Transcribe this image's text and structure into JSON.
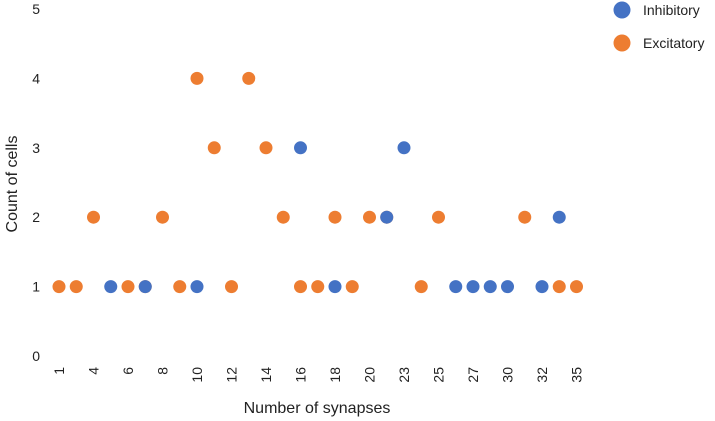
{
  "chart_data": {
    "type": "scatter",
    "title": "",
    "xlabel": "Number of synapses",
    "ylabel": "Count of cells",
    "categories": [
      "1",
      "",
      "4",
      "",
      "6",
      "",
      "8",
      "",
      "10",
      "",
      "12",
      "",
      "14",
      "",
      "16",
      "",
      "18",
      "",
      "20",
      "",
      "23",
      "",
      "25",
      "",
      "27",
      "",
      "30",
      "",
      "32",
      "",
      "35"
    ],
    "ylim": [
      0,
      5
    ],
    "yticks": [
      0,
      1,
      2,
      3,
      4,
      5
    ],
    "grid": false,
    "legend_position": "top-right",
    "series": [
      {
        "name": "Inhibitory",
        "color": "#4472c4",
        "points": [
          [
            3,
            1
          ],
          [
            5,
            1
          ],
          [
            8,
            1
          ],
          [
            14,
            3
          ],
          [
            16,
            1
          ],
          [
            19,
            2
          ],
          [
            20,
            3
          ],
          [
            23,
            1
          ],
          [
            24,
            1
          ],
          [
            25,
            1
          ],
          [
            26,
            1
          ],
          [
            28,
            1
          ],
          [
            29,
            2
          ]
        ]
      },
      {
        "name": "Excitatory",
        "color": "#ed7d31",
        "points": [
          [
            0,
            1
          ],
          [
            1,
            1
          ],
          [
            2,
            2
          ],
          [
            4,
            1
          ],
          [
            5,
            1
          ],
          [
            6,
            2
          ],
          [
            7,
            1
          ],
          [
            8,
            4
          ],
          [
            9,
            3
          ],
          [
            10,
            1
          ],
          [
            11,
            4
          ],
          [
            12,
            3
          ],
          [
            13,
            2
          ],
          [
            14,
            1
          ],
          [
            15,
            1
          ],
          [
            16,
            2
          ],
          [
            17,
            1
          ],
          [
            18,
            2
          ],
          [
            19,
            2
          ],
          [
            21,
            1
          ],
          [
            22,
            2
          ],
          [
            27,
            2
          ],
          [
            29,
            1
          ],
          [
            30,
            1
          ]
        ]
      }
    ]
  }
}
